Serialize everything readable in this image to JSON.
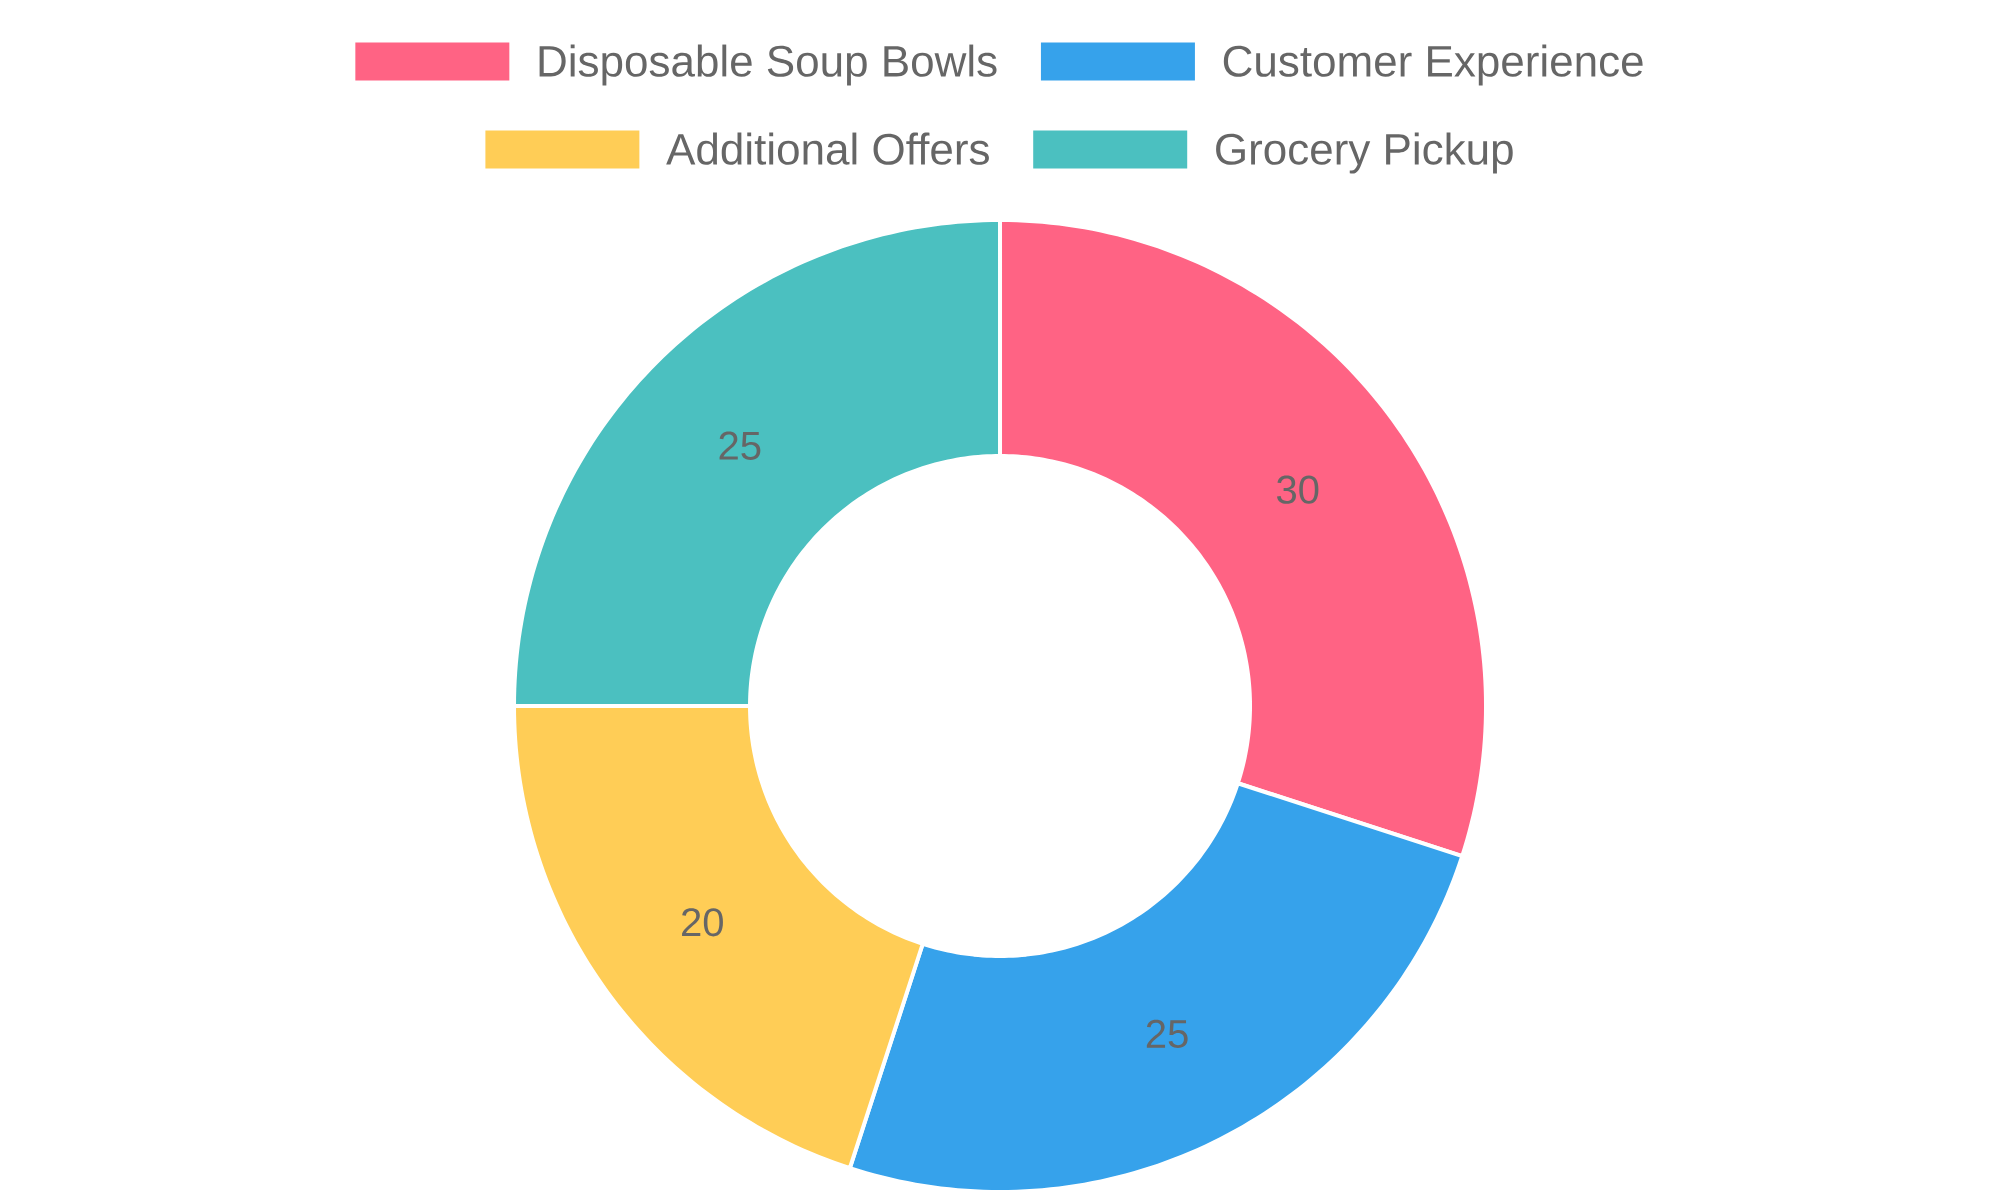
{
  "chart_data": {
    "type": "donut",
    "categories": [
      "Disposable Soup Bowls",
      "Customer Experience",
      "Additional Offers",
      "Grocery Pickup"
    ],
    "values": [
      30,
      25,
      20,
      25
    ],
    "colors": [
      "#ff6384",
      "#36a2eb",
      "#ffcd56",
      "#4bc0c0"
    ],
    "data_labels": true,
    "legend": "top"
  }
}
